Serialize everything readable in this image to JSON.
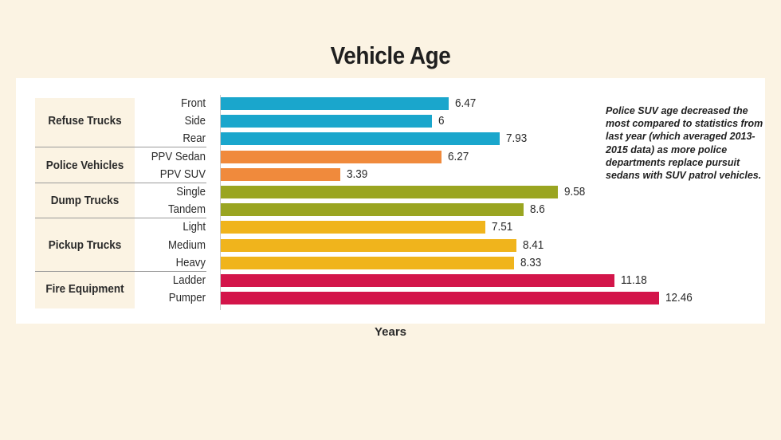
{
  "title": "Vehicle Age",
  "xlabel": "Years",
  "note": "Police SUV age decreased the most compared to statistics from last year (which averaged 2013-2015 data) as more police departments replace pursuit sedans with SUV patrol vehicles.",
  "colors": {
    "Refuse Trucks": "#1aa6cc",
    "Police Vehicles": "#f08a3c",
    "Dump Trucks": "#9aa521",
    "Pickup Trucks": "#f0b41c",
    "Fire Equipment": "#d3154a"
  },
  "chart_data": {
    "type": "bar",
    "orientation": "horizontal",
    "title": "Vehicle Age",
    "xlabel": "Years",
    "ylabel": "",
    "xlim": [
      0,
      13
    ],
    "grid": false,
    "groups": [
      {
        "name": "Refuse Trucks",
        "categories": [
          "Front",
          "Side",
          "Rear"
        ],
        "values": [
          6.47,
          6,
          7.93
        ]
      },
      {
        "name": "Police Vehicles",
        "categories": [
          "PPV Sedan",
          "PPV SUV"
        ],
        "values": [
          6.27,
          3.39
        ]
      },
      {
        "name": "Dump Trucks",
        "categories": [
          "Single",
          "Tandem"
        ],
        "values": [
          9.58,
          8.6
        ]
      },
      {
        "name": "Pickup Trucks",
        "categories": [
          "Light",
          "Medium",
          "Heavy"
        ],
        "values": [
          7.51,
          8.41,
          8.33
        ]
      },
      {
        "name": "Fire Equipment",
        "categories": [
          "Ladder",
          "Pumper"
        ],
        "values": [
          11.18,
          12.46
        ]
      }
    ]
  }
}
